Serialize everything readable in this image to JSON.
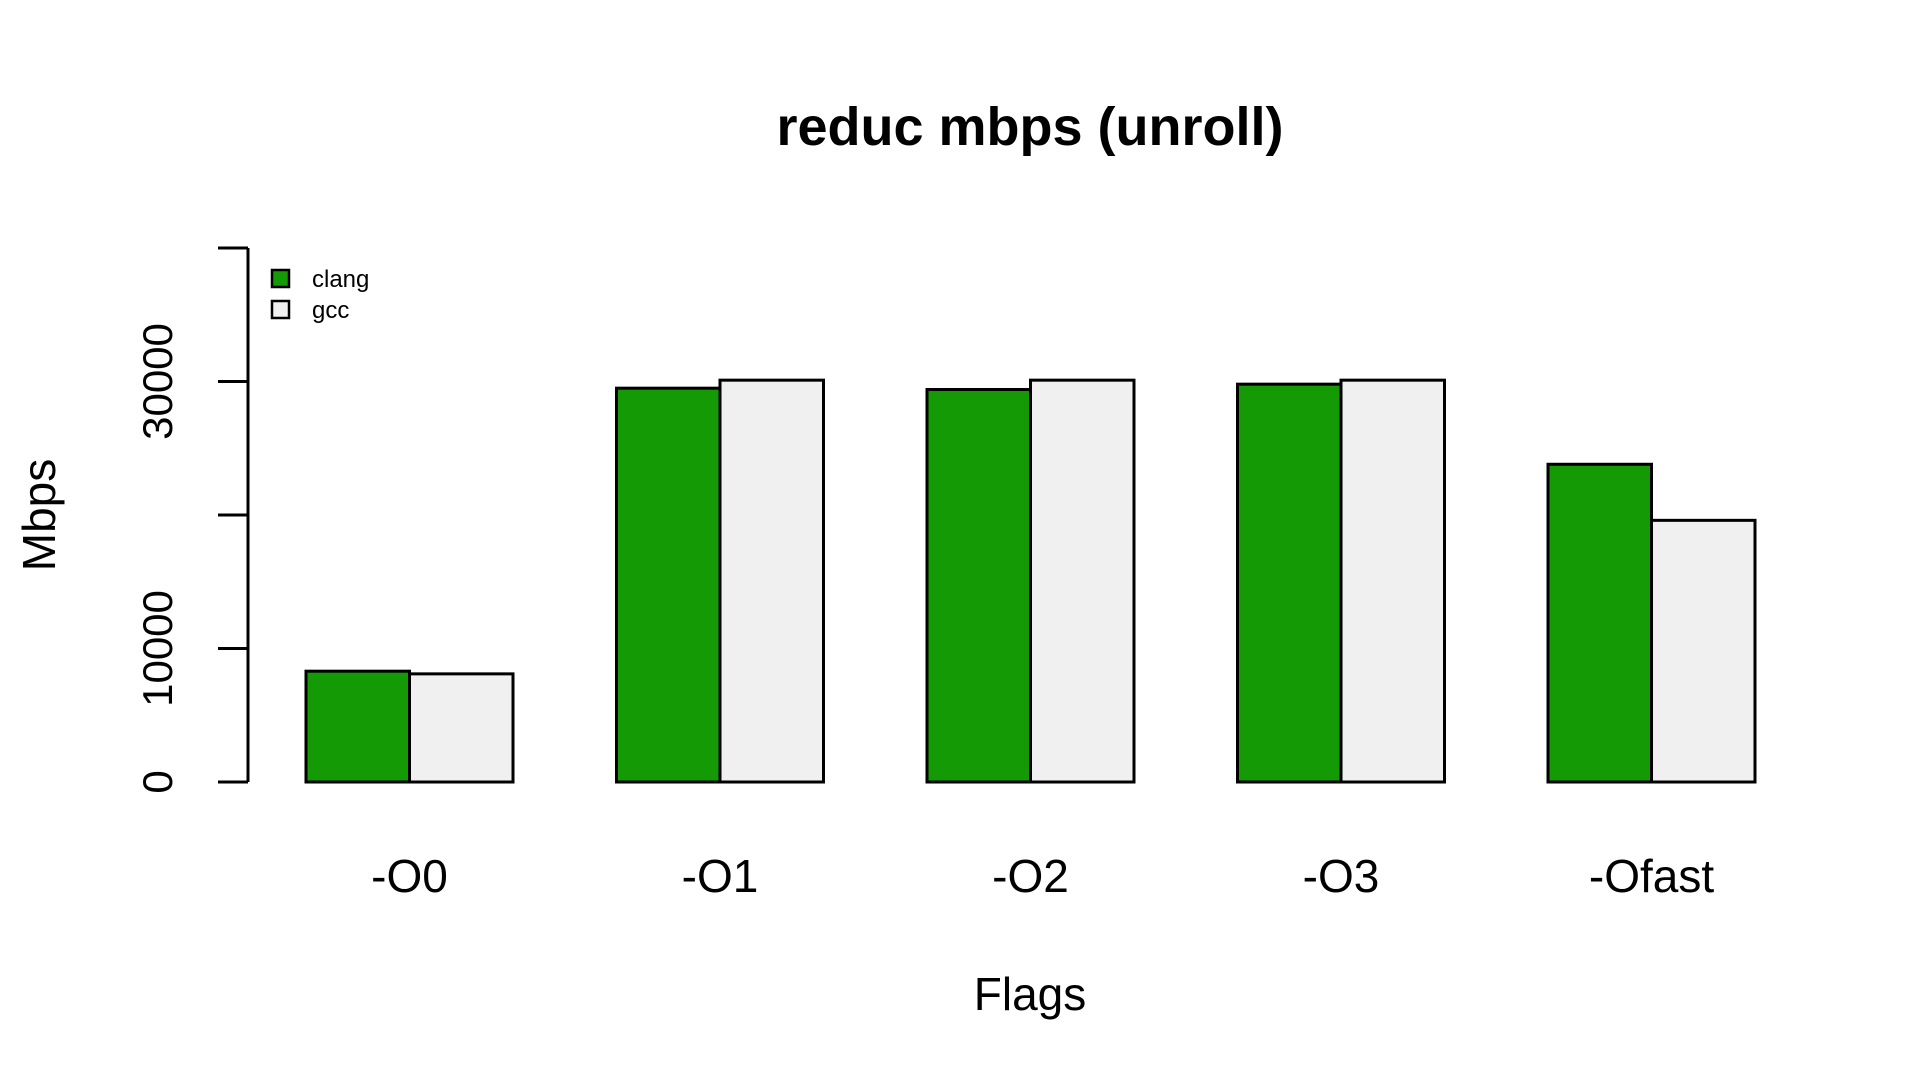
{
  "chart_data": {
    "type": "bar",
    "title": "reduc mbps (unroll)",
    "xlabel": "Flags",
    "ylabel": "Mbps",
    "categories": [
      "-O0",
      "-O1",
      "-O2",
      "-O3",
      "-Ofast"
    ],
    "series": [
      {
        "name": "clang",
        "color": "#139A05",
        "values": [
          8300,
          29500,
          29400,
          29800,
          23800
        ]
      },
      {
        "name": "gcc",
        "color": "#F0F0F0",
        "values": [
          8100,
          30100,
          30100,
          30100,
          19600
        ]
      }
    ],
    "ylim": [
      0,
      40000
    ],
    "yticks": [
      0,
      10000,
      20000,
      30000,
      40000
    ],
    "ytick_labels": [
      "0",
      "10000",
      "",
      "30000",
      ""
    ],
    "legend_position": "top-left",
    "grid": false
  }
}
